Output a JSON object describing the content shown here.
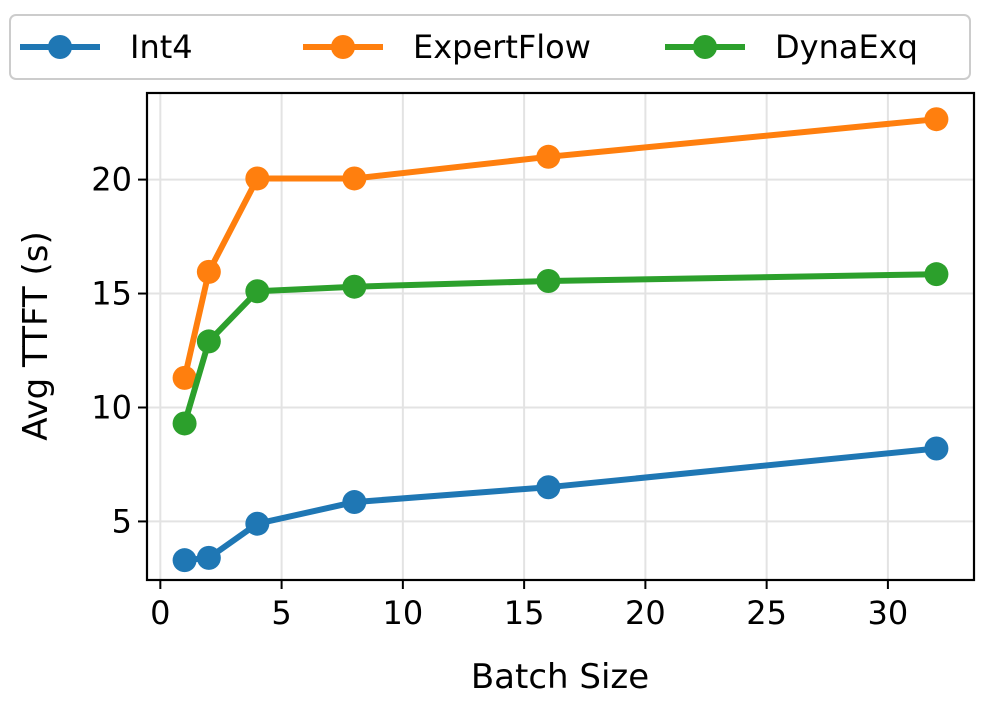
{
  "chart_data": {
    "type": "line",
    "title": "",
    "xlabel": "Batch Size",
    "ylabel": "Avg TTFT (s)",
    "xlim": [
      -0.55,
      33.55
    ],
    "ylim": [
      2.43,
      23.8
    ],
    "xticks": [
      0,
      5,
      10,
      15,
      20,
      25,
      30
    ],
    "yticks": [
      5,
      10,
      15,
      20
    ],
    "grid": true,
    "legend_position": "top",
    "x": [
      1,
      2,
      4,
      8,
      16,
      32
    ],
    "series": [
      {
        "name": "Int4",
        "color": "#1f77b4",
        "values": [
          3.3,
          3.4,
          4.9,
          5.85,
          6.5,
          8.2
        ]
      },
      {
        "name": "ExpertFlow",
        "color": "#ff7f0e",
        "values": [
          11.3,
          15.95,
          20.05,
          20.05,
          21.0,
          22.65
        ]
      },
      {
        "name": "DynaExq",
        "color": "#2ca02c",
        "values": [
          9.3,
          12.9,
          15.1,
          15.3,
          15.55,
          15.85
        ]
      }
    ]
  }
}
